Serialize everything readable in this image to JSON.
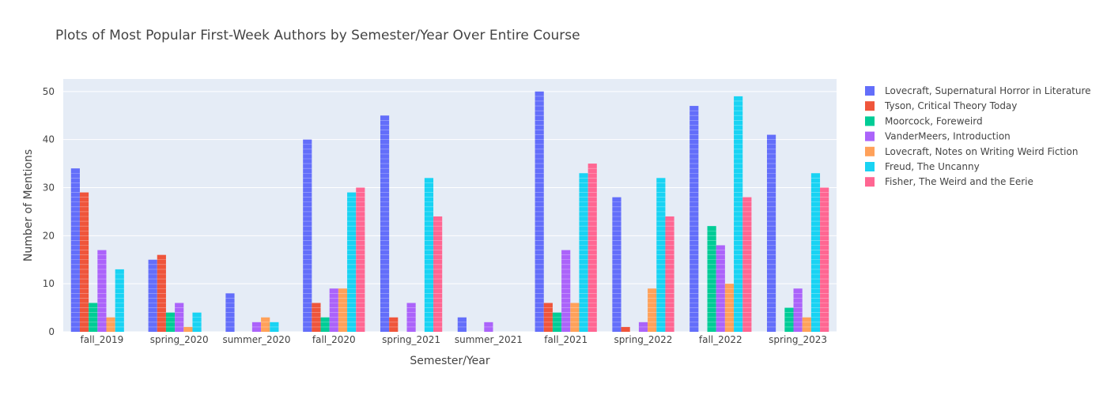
{
  "chart_data": {
    "type": "bar",
    "title": "Plots of Most Popular First-Week Authors by Semester/Year Over Entire Course",
    "xlabel": "Semester/Year",
    "ylabel": "Number of Mentions",
    "ylim": [
      0,
      52.6
    ],
    "yticks": [
      0,
      10,
      20,
      30,
      40,
      50
    ],
    "grid": true,
    "legend_position": "right",
    "categories": [
      "fall_2019",
      "spring_2020",
      "summer_2020",
      "fall_2020",
      "spring_2021",
      "summer_2021",
      "fall_2021",
      "spring_2022",
      "fall_2022",
      "spring_2023"
    ],
    "series": [
      {
        "name": "Lovecraft, Supernatural Horror in Literature",
        "color": "#636efa",
        "values": [
          34,
          15,
          8,
          40,
          45,
          3,
          50,
          28,
          47,
          41
        ]
      },
      {
        "name": "Tyson, Critical Theory Today",
        "color": "#ef553b",
        "values": [
          29,
          16,
          0,
          6,
          3,
          0,
          6,
          1,
          0,
          0
        ]
      },
      {
        "name": "Moorcock, Foreweird",
        "color": "#00cc96",
        "values": [
          6,
          4,
          0,
          3,
          0,
          0,
          4,
          0,
          22,
          5
        ]
      },
      {
        "name": "VanderMeers, Introduction",
        "color": "#ab63fa",
        "values": [
          17,
          6,
          2,
          9,
          6,
          2,
          17,
          2,
          18,
          9
        ]
      },
      {
        "name": "Lovecraft, Notes on Writing Weird Fiction",
        "color": "#ffa15a",
        "values": [
          3,
          1,
          3,
          9,
          0,
          0,
          6,
          9,
          10,
          3
        ]
      },
      {
        "name": "Freud, The Uncanny",
        "color": "#19d3f3",
        "values": [
          13,
          4,
          2,
          29,
          32,
          0,
          33,
          32,
          49,
          33
        ]
      },
      {
        "name": "Fisher, The Weird and the Eerie",
        "color": "#ff6692",
        "values": [
          0,
          0,
          0,
          30,
          24,
          0,
          35,
          24,
          28,
          30
        ]
      }
    ]
  }
}
